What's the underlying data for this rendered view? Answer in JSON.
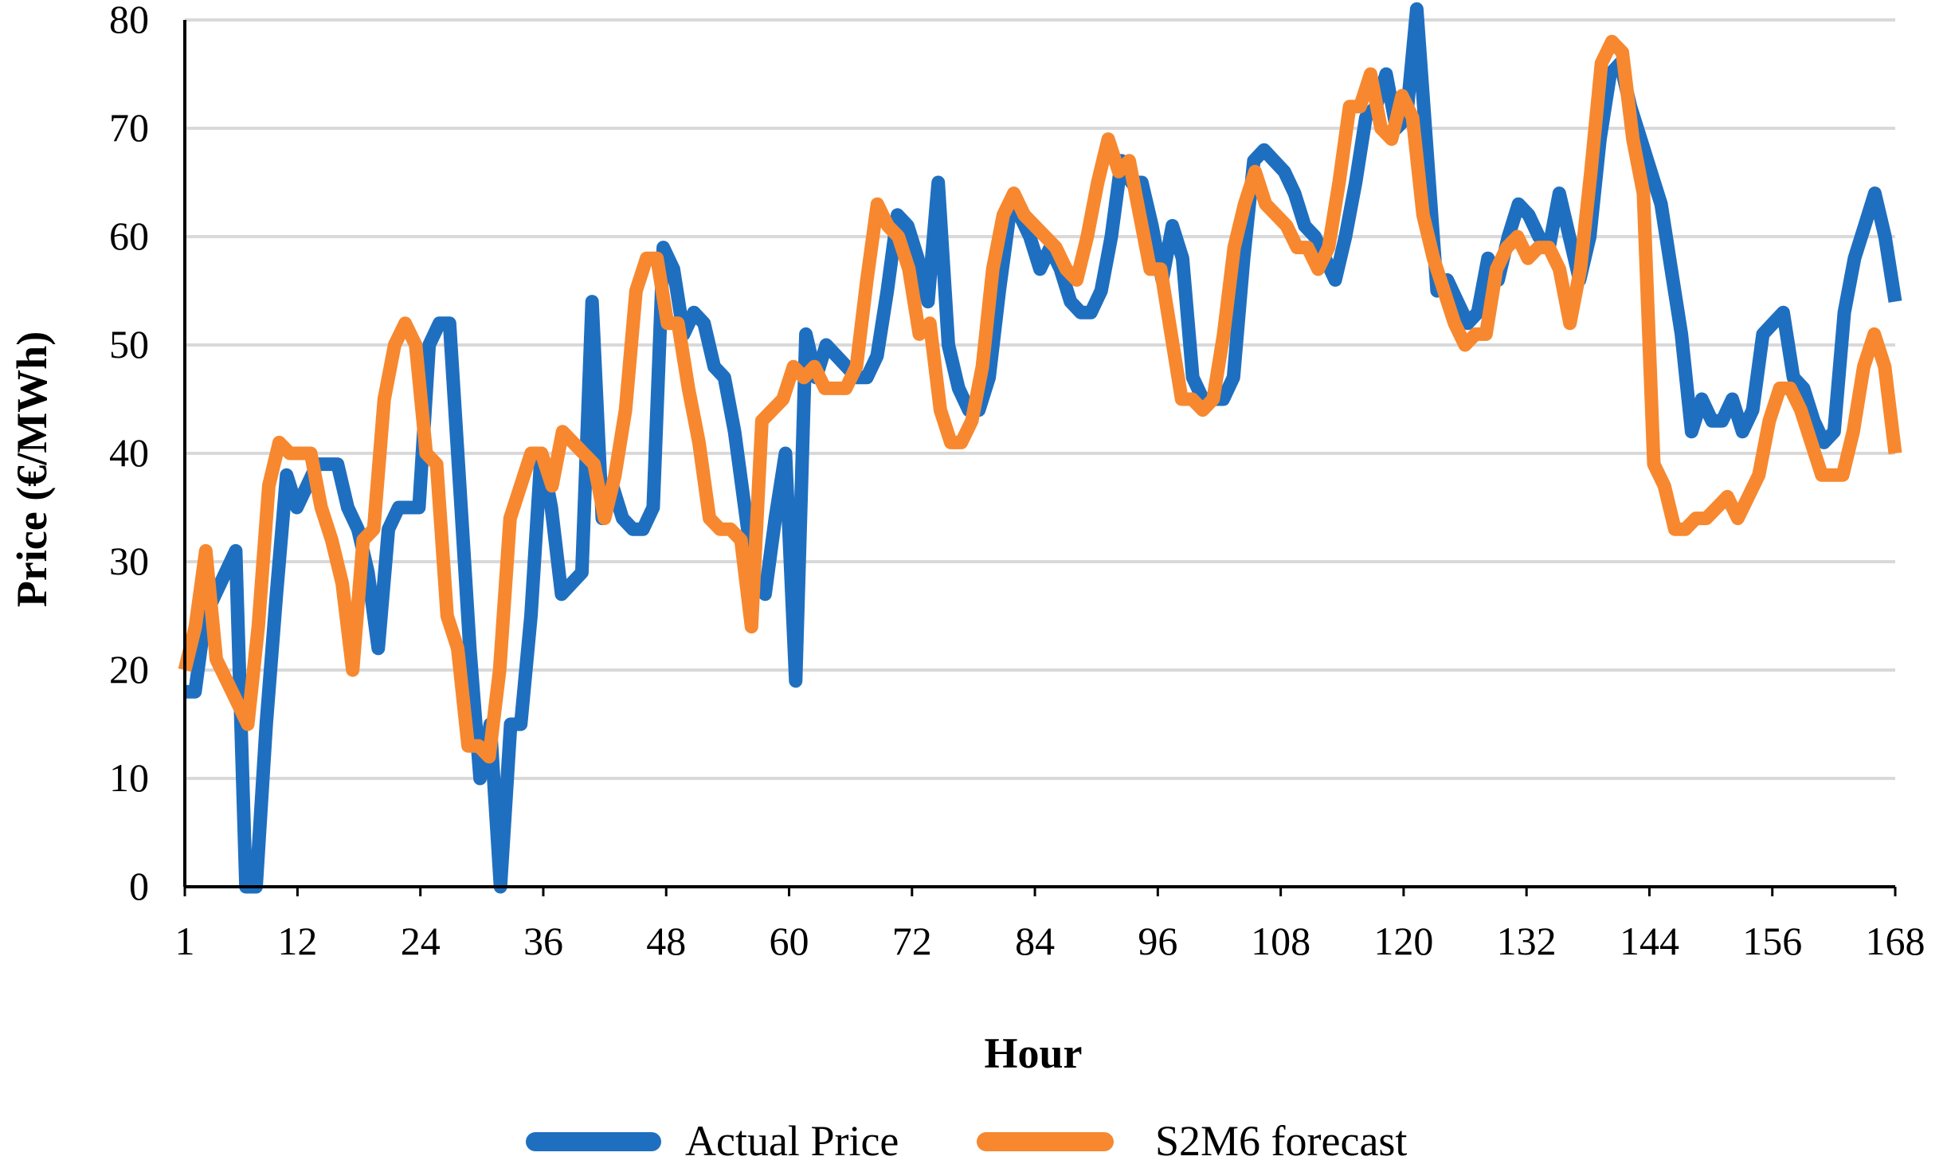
{
  "chart_data": {
    "type": "line",
    "title": "",
    "xlabel": "Hour",
    "ylabel": "Price (€/MWh)",
    "ylim": [
      0,
      80
    ],
    "xlim": [
      1,
      168
    ],
    "yticks": [
      "0",
      "10",
      "20",
      "30",
      "40",
      "50",
      "60",
      "70",
      "80"
    ],
    "xticks": [
      "1",
      "12",
      "24",
      "36",
      "48",
      "60",
      "72",
      "84",
      "96",
      "108",
      "120",
      "132",
      "144",
      "156",
      "168"
    ],
    "grid": "horizontal",
    "legend_position": "bottom",
    "series": [
      {
        "name": "Actual Price",
        "color": "#1f6fc0",
        "values": [
          18,
          18,
          25,
          27,
          29,
          31,
          0,
          0,
          15,
          27,
          38,
          35,
          37,
          39,
          39,
          39,
          35,
          33,
          29,
          22,
          33,
          35,
          35,
          35,
          50,
          52,
          52,
          37,
          22,
          10,
          15,
          0,
          15,
          15,
          25,
          40,
          35,
          27,
          28,
          29,
          54,
          34,
          37,
          34,
          33,
          33,
          35,
          59,
          57,
          51,
          53,
          52,
          48,
          47,
          42,
          35,
          28,
          27,
          34,
          40,
          19,
          51,
          47,
          50,
          49,
          48,
          47,
          47,
          49,
          55,
          62,
          61,
          58,
          54,
          65,
          50,
          46,
          44,
          44,
          47,
          55,
          62,
          62,
          60,
          57,
          59,
          57,
          54,
          53,
          53,
          55,
          60,
          67,
          65,
          65,
          61,
          56,
          61,
          58,
          47,
          45,
          45,
          45,
          47,
          58,
          67,
          68,
          67,
          66,
          64,
          61,
          60,
          58,
          56,
          60,
          65,
          71,
          72,
          75,
          70,
          71,
          81,
          68,
          55,
          56,
          54,
          52,
          53,
          58,
          56,
          60,
          63,
          62,
          60,
          59,
          64,
          60,
          56,
          60,
          69,
          75,
          76,
          72,
          69,
          66,
          63,
          57,
          51,
          42,
          45,
          43,
          43,
          45,
          42,
          44,
          51,
          52,
          53,
          47,
          46,
          43,
          41,
          42,
          53,
          58,
          61,
          64,
          60,
          54
        ]
      },
      {
        "name": "S2M6 forecast",
        "color": "#f7882f",
        "values": [
          20,
          24,
          31,
          21,
          19,
          17,
          15,
          24,
          37,
          41,
          40,
          40,
          40,
          35,
          32,
          28,
          20,
          32,
          33,
          45,
          50,
          52,
          50,
          40,
          39,
          25,
          22,
          13,
          13,
          12,
          20,
          34,
          37,
          40,
          40,
          37,
          42,
          41,
          40,
          39,
          34,
          38,
          44,
          55,
          58,
          58,
          52,
          52,
          46,
          41,
          34,
          33,
          33,
          32,
          24,
          43,
          44,
          45,
          48,
          47,
          48,
          46,
          46,
          46,
          48,
          56,
          63,
          61,
          60,
          57,
          51,
          52,
          44,
          41,
          41,
          43,
          48,
          57,
          62,
          64,
          62,
          61,
          60,
          59,
          57,
          56,
          60,
          65,
          69,
          66,
          67,
          62,
          57,
          57,
          51,
          45,
          45,
          44,
          45,
          51,
          59,
          63,
          66,
          63,
          62,
          61,
          59,
          59,
          57,
          59,
          65,
          72,
          72,
          75,
          70,
          69,
          73,
          71,
          62,
          58,
          55,
          52,
          50,
          51,
          51,
          57,
          59,
          60,
          58,
          59,
          59,
          57,
          52,
          57,
          66,
          76,
          78,
          77,
          69,
          64,
          39,
          37,
          33,
          33,
          34,
          34,
          35,
          36,
          34,
          36,
          38,
          43,
          46,
          46,
          44,
          41,
          38,
          38,
          38,
          42,
          48,
          51,
          48,
          40
        ]
      }
    ]
  }
}
